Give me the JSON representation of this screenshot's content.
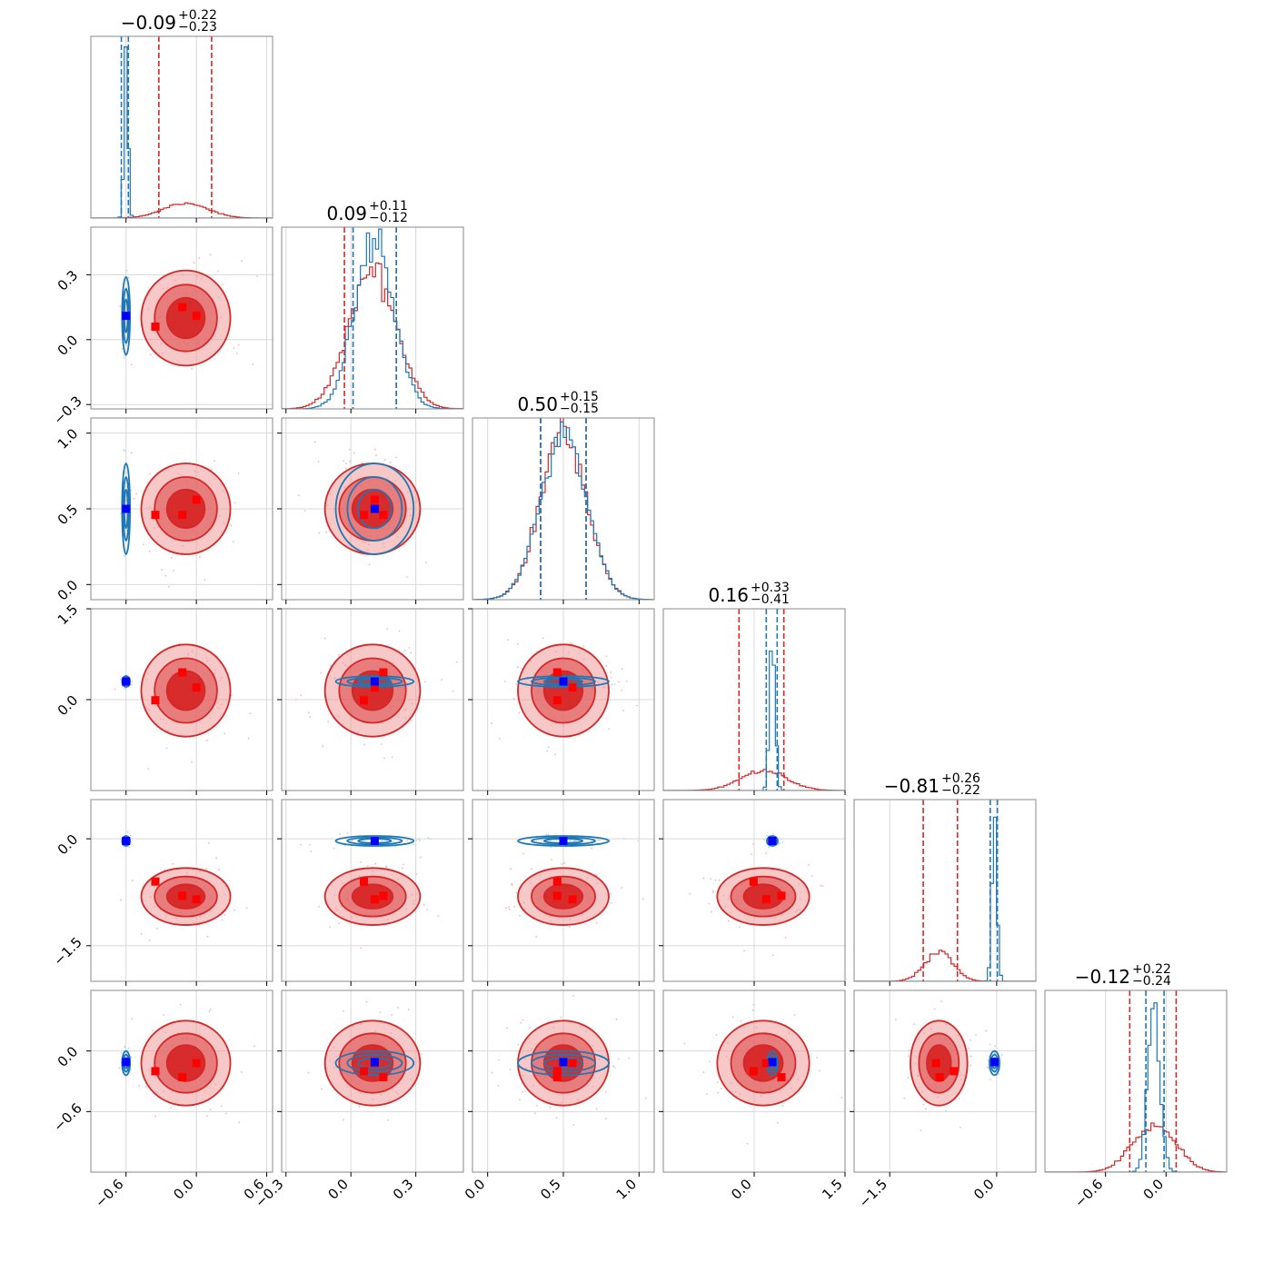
{
  "chart_data": {
    "type": "corner",
    "grid": true,
    "colors": {
      "red": "#d62728",
      "red_light": "#ee9a9b",
      "red_mid": "#e35c5d",
      "blue": "#1f77b4",
      "marker_red": "#ff0000",
      "marker_blue": "#0000ff",
      "grid": "#d8d8d8",
      "axis": "#888888"
    },
    "parameters": [
      {
        "range": [
          -0.9,
          0.65
        ],
        "ticks": [
          -0.6,
          0.0,
          0.6
        ],
        "tick_labels": [
          "−0.6",
          "0.0",
          "0.6"
        ],
        "title": {
          "value": "−0.09",
          "plus": "+0.22",
          "minus": "−0.23"
        },
        "red": {
          "mean": -0.09,
          "sd": 0.19,
          "q": [
            -0.32,
            0.13
          ]
        },
        "blue": {
          "mean": -0.6,
          "sd": 0.017,
          "q": [
            -0.64,
            -0.58
          ]
        }
      },
      {
        "range": [
          -0.32,
          0.52
        ],
        "ticks": [
          -0.3,
          0.0,
          0.3
        ],
        "tick_labels": [
          "−0.3",
          "0.0",
          "0.3"
        ],
        "title": {
          "value": "0.09",
          "plus": "+0.11",
          "minus": "−0.12"
        },
        "red": {
          "mean": 0.1,
          "sd": 0.11,
          "q": [
            -0.03,
            0.21
          ]
        },
        "blue": {
          "mean": 0.11,
          "sd": 0.09,
          "q": [
            0.01,
            0.21
          ]
        }
      },
      {
        "range": [
          -0.1,
          1.1
        ],
        "ticks": [
          0.0,
          0.5,
          1.0
        ],
        "tick_labels": [
          "0.0",
          "0.5",
          "1.0"
        ],
        "title": {
          "value": "0.50",
          "plus": "+0.15",
          "minus": "−0.15"
        },
        "red": {
          "mean": 0.5,
          "sd": 0.15,
          "q": [
            0.35,
            0.65
          ]
        },
        "blue": {
          "mean": 0.5,
          "sd": 0.15,
          "q": [
            0.35,
            0.65
          ]
        }
      },
      {
        "range": [
          -1.5,
          1.5
        ],
        "ticks": [
          0.0,
          1.5
        ],
        "tick_labels": [
          "0.0",
          "1.5"
        ],
        "title": {
          "value": "0.16",
          "plus": "+0.33",
          "minus": "−0.41"
        },
        "red": {
          "mean": 0.15,
          "sd": 0.38,
          "q": [
            -0.25,
            0.49
          ]
        },
        "blue": {
          "mean": 0.3,
          "sd": 0.045,
          "q": [
            0.2,
            0.38
          ]
        }
      },
      {
        "range": [
          -2.0,
          0.55
        ],
        "ticks": [
          -1.5,
          0.0
        ],
        "tick_labels": [
          "−1.5",
          "0.0"
        ],
        "title": {
          "value": "−0.81",
          "plus": "+0.26",
          "minus": "−0.22"
        },
        "red": {
          "mean": -0.81,
          "sd": 0.2,
          "q": [
            -1.03,
            -0.55
          ]
        },
        "blue": {
          "mean": -0.03,
          "sd": 0.035,
          "q": [
            -0.09,
            0.01
          ]
        }
      },
      {
        "range": [
          -1.2,
          0.6
        ],
        "ticks": [
          -0.6,
          0.0
        ],
        "tick_labels": [
          "−0.6",
          "0.0"
        ],
        "title": {
          "value": "−0.12",
          "plus": "+0.22",
          "minus": "−0.24"
        },
        "red": {
          "mean": -0.12,
          "sd": 0.21,
          "q": [
            -0.36,
            0.1
          ]
        },
        "blue": {
          "mean": -0.12,
          "sd": 0.06,
          "q": [
            -0.2,
            -0.02
          ]
        }
      }
    ],
    "truth_blue": [
      -0.6,
      0.11,
      0.5,
      0.3,
      -0.03,
      -0.11
    ],
    "truth_red": [
      [
        -0.35,
        0.06,
        0.46,
        -0.01,
        -0.6,
        -0.2
      ],
      [
        0.0,
        0.11,
        0.56,
        0.2,
        -0.85,
        -0.12
      ],
      [
        -0.12,
        0.15,
        0.46,
        0.45,
        -0.8,
        -0.26
      ]
    ]
  }
}
